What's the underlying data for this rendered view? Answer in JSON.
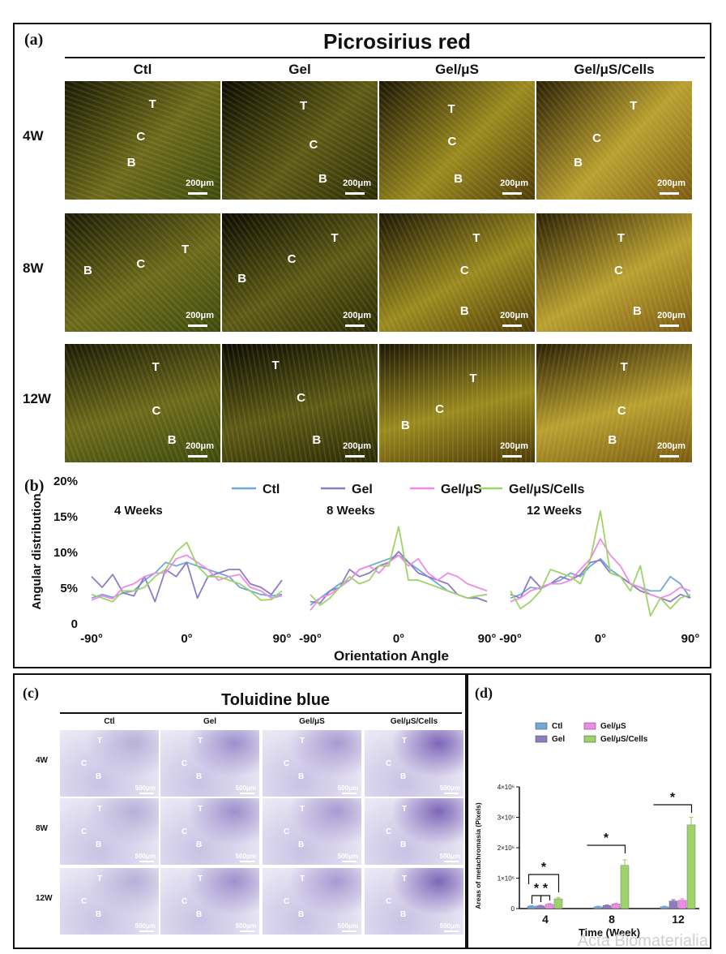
{
  "panel_a": {
    "label": "(a)",
    "title": "Picrosirius red",
    "columns": [
      "Ctl",
      "Gel",
      "Gel/μS",
      "Gel/μS/Cells"
    ],
    "rows": [
      {
        "label": "4W",
        "tiles": [
          {
            "marks": [
              "T",
              "C",
              "B"
            ],
            "scale": "200μm"
          },
          {
            "marks": [
              "T",
              "C",
              "B"
            ],
            "scale": "200μm"
          },
          {
            "marks": [
              "T",
              "C",
              "B"
            ],
            "scale": "200μm"
          },
          {
            "marks": [
              "T",
              "C",
              "B"
            ],
            "scale": "200μm"
          }
        ]
      },
      {
        "label": "8W",
        "tiles": [
          {
            "marks": [
              "T",
              "C",
              "B"
            ],
            "scale": "200μm"
          },
          {
            "marks": [
              "T",
              "C",
              "B"
            ],
            "scale": "200μm"
          },
          {
            "marks": [
              "T",
              "C",
              "B"
            ],
            "scale": "200μm"
          },
          {
            "marks": [
              "T",
              "C",
              "B"
            ],
            "scale": "200μm"
          }
        ]
      },
      {
        "label": "12W",
        "tiles": [
          {
            "marks": [
              "T",
              "C",
              "B"
            ],
            "scale": "200μm"
          },
          {
            "marks": [
              "T",
              "C",
              "B"
            ],
            "scale": "200μm"
          },
          {
            "marks": [
              "T",
              "C",
              "B"
            ],
            "scale": "200μm"
          },
          {
            "marks": [
              "T",
              "C",
              "B"
            ],
            "scale": "200μm"
          }
        ]
      }
    ]
  },
  "panel_b": {
    "label": "(b)"
  },
  "panel_c": {
    "label": "(c)",
    "title": "Toluidine blue",
    "columns": [
      "Ctl",
      "Gel",
      "Gel/μS",
      "Gel/μS/Cells"
    ],
    "rows": [
      {
        "label": "4W",
        "tiles": [
          {
            "marks": [
              "T",
              "C",
              "B"
            ],
            "scale": "500μm"
          },
          {
            "marks": [
              "T",
              "C",
              "B"
            ],
            "scale": "500μm"
          },
          {
            "marks": [
              "T",
              "C",
              "B"
            ],
            "scale": "500μm"
          },
          {
            "marks": [
              "T",
              "C",
              "B"
            ],
            "scale": "500μm"
          }
        ]
      },
      {
        "label": "8W",
        "tiles": [
          {
            "marks": [
              "T",
              "C",
              "B"
            ],
            "scale": "500μm"
          },
          {
            "marks": [
              "T",
              "C",
              "B"
            ],
            "scale": "500μm"
          },
          {
            "marks": [
              "T",
              "C",
              "B"
            ],
            "scale": "500μm"
          },
          {
            "marks": [
              "T",
              "C",
              "B"
            ],
            "scale": "500μm"
          }
        ]
      },
      {
        "label": "12W",
        "tiles": [
          {
            "marks": [
              "T",
              "C",
              "B"
            ],
            "scale": "500μm"
          },
          {
            "marks": [
              "T",
              "C",
              "B"
            ],
            "scale": "500μm"
          },
          {
            "marks": [
              "T",
              "C",
              "B"
            ],
            "scale": "500μm"
          },
          {
            "marks": [
              "T",
              "C",
              "B"
            ],
            "scale": "500μm"
          }
        ]
      }
    ]
  },
  "panel_d": {
    "label": "(d)"
  },
  "watermark": "Acta Biomaterialia",
  "chart_data": [
    {
      "type": "line",
      "panels": [
        "4 Weeks",
        "8 Weeks",
        "12 Weeks"
      ],
      "xlabel": "Orientation Angle",
      "ylabel": "Angular distribution",
      "yticks": [
        "0",
        "5%",
        "10%",
        "15%",
        "20%"
      ],
      "ylim": [
        0,
        20
      ],
      "xticks": [
        "-90°",
        "0°",
        "90°"
      ],
      "xlim": [
        -90,
        90
      ],
      "x": [
        -90,
        -80,
        -70,
        -60,
        -50,
        -40,
        -30,
        -20,
        -10,
        0,
        10,
        20,
        30,
        40,
        50,
        60,
        70,
        80,
        90
      ],
      "legend": "top",
      "colors": {
        "Ctl": "#6fa8dc",
        "Gel": "#8e7cc3",
        "Gel/μS": "#f08ae8",
        "Gel/μS/Cells": "#9ed36a"
      },
      "series": [
        {
          "name": "Ctl",
          "panel": 0,
          "values": [
            3.5,
            4.0,
            3.6,
            4.2,
            4.5,
            6.0,
            7.0,
            8.5,
            8.0,
            8.5,
            8.0,
            7.5,
            7.0,
            6.5,
            5.0,
            4.5,
            4.0,
            3.8,
            4.0
          ]
        },
        {
          "name": "Gel",
          "panel": 0,
          "values": [
            6.5,
            5.0,
            6.8,
            4.2,
            3.8,
            6.5,
            3.0,
            7.5,
            6.5,
            8.5,
            3.5,
            6.5,
            7.0,
            7.5,
            7.5,
            5.5,
            5.0,
            4.0,
            6.0
          ]
        },
        {
          "name": "Gel/μS",
          "panel": 0,
          "values": [
            3.2,
            3.8,
            3.4,
            5.0,
            5.5,
            6.5,
            7.0,
            7.0,
            9.0,
            9.5,
            8.5,
            7.5,
            6.0,
            6.5,
            6.8,
            5.0,
            4.5,
            3.5,
            3.8
          ]
        },
        {
          "name": "Gel/μS/Cells",
          "panel": 0,
          "values": [
            4.0,
            3.5,
            3.0,
            4.5,
            4.5,
            5.0,
            6.5,
            7.5,
            10.0,
            11.3,
            8.0,
            6.5,
            6.5,
            6.0,
            5.5,
            4.5,
            3.2,
            3.3,
            4.5
          ]
        },
        {
          "name": "Ctl",
          "panel": 1,
          "values": [
            2.5,
            3.5,
            4.5,
            5.5,
            6.0,
            7.5,
            8.0,
            8.5,
            9.0,
            9.5,
            8.5,
            7.5,
            6.5,
            5.5,
            4.5,
            4.0,
            3.5,
            3.5,
            3.0
          ]
        },
        {
          "name": "Gel",
          "panel": 1,
          "values": [
            3.0,
            2.8,
            4.5,
            5.0,
            7.5,
            6.5,
            7.0,
            8.0,
            8.5,
            10.0,
            8.5,
            7.0,
            6.5,
            6.0,
            5.5,
            4.0,
            3.5,
            3.5,
            3.0
          ]
        },
        {
          "name": "Gel/μS",
          "panel": 1,
          "values": [
            1.8,
            3.5,
            4.0,
            5.0,
            6.0,
            7.5,
            8.0,
            7.0,
            8.5,
            9.5,
            8.0,
            9.0,
            7.0,
            6.0,
            7.0,
            6.5,
            5.5,
            5.0,
            4.5
          ]
        },
        {
          "name": "Gel/μS/Cells",
          "panel": 1,
          "values": [
            4.0,
            2.5,
            3.5,
            5.0,
            6.5,
            5.5,
            6.0,
            8.0,
            8.0,
            13.5,
            6.0,
            6.0,
            5.5,
            5.0,
            4.5,
            4.0,
            3.5,
            3.8,
            4.0
          ]
        },
        {
          "name": "Ctl",
          "panel": 2,
          "values": [
            3.5,
            4.0,
            5.0,
            4.8,
            5.5,
            6.0,
            7.0,
            6.5,
            8.0,
            9.0,
            7.5,
            6.5,
            5.5,
            5.0,
            4.5,
            4.5,
            6.5,
            5.5,
            3.5
          ]
        },
        {
          "name": "Gel",
          "panel": 2,
          "values": [
            4.0,
            3.5,
            6.5,
            5.0,
            5.5,
            6.5,
            6.0,
            6.8,
            8.5,
            8.8,
            7.0,
            6.5,
            5.5,
            4.5,
            4.0,
            3.5,
            3.0,
            4.0,
            3.5
          ]
        },
        {
          "name": "Gel/μS",
          "panel": 2,
          "values": [
            3.0,
            3.5,
            4.5,
            5.0,
            5.5,
            5.5,
            6.0,
            7.5,
            9.0,
            11.8,
            9.5,
            8.0,
            5.5,
            5.0,
            4.0,
            3.5,
            4.0,
            5.0,
            4.5
          ]
        },
        {
          "name": "Gel/μS/Cells",
          "panel": 2,
          "values": [
            4.5,
            2.0,
            3.0,
            4.5,
            7.5,
            7.0,
            6.5,
            5.5,
            9.0,
            15.7,
            7.0,
            6.5,
            4.5,
            8.0,
            1.0,
            3.5,
            2.0,
            3.5,
            4.0
          ]
        }
      ]
    },
    {
      "type": "bar",
      "categories": [
        "4",
        "8",
        "12"
      ],
      "xlabel": "Time (Week)",
      "ylabel": "Areas of metachromasia (Pixels)",
      "yticks": [
        "0",
        "1×10⁶",
        "2×10⁶",
        "3×10⁶",
        "4×10⁶"
      ],
      "ylim": [
        0,
        4000000
      ],
      "legend": "top",
      "series": [
        {
          "name": "Ctl",
          "color": "#6fa8dc",
          "values": [
            80000,
            60000,
            60000
          ],
          "errors": [
            15000,
            15000,
            15000
          ]
        },
        {
          "name": "Gel",
          "color": "#8e7cc3",
          "values": [
            90000,
            100000,
            250000
          ],
          "errors": [
            15000,
            20000,
            40000
          ]
        },
        {
          "name": "Gel/μS",
          "color": "#f08ae8",
          "values": [
            140000,
            150000,
            270000
          ],
          "errors": [
            25000,
            25000,
            50000
          ]
        },
        {
          "name": "Gel/μS/Cells",
          "color": "#9ed36a",
          "values": [
            320000,
            1420000,
            2750000
          ],
          "errors": [
            40000,
            180000,
            250000
          ]
        }
      ],
      "significance": [
        "*",
        "*",
        "*",
        "*",
        "*"
      ]
    }
  ]
}
